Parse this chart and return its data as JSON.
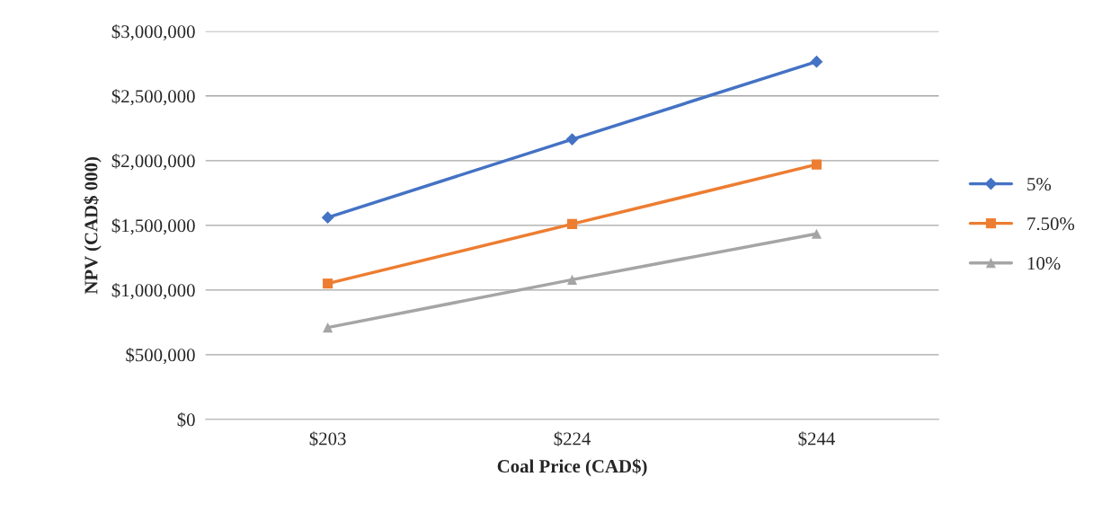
{
  "chart_data": {
    "type": "line",
    "xlabel": "Coal Price (CAD$)",
    "ylabel": "NPV (CAD$ 000)",
    "categories": [
      "$203",
      "$224",
      "$244"
    ],
    "series": [
      {
        "name": "5%",
        "color": "#4472c4",
        "marker": "diamond",
        "values": [
          1560000,
          2165000,
          2765000
        ]
      },
      {
        "name": "7.50%",
        "color": "#ed7d31",
        "marker": "square",
        "values": [
          1050000,
          1510000,
          1970000
        ]
      },
      {
        "name": "10%",
        "color": "#a5a5a5",
        "marker": "triangle",
        "values": [
          710000,
          1080000,
          1435000
        ]
      }
    ],
    "ylim": [
      0,
      3000000
    ],
    "yticks": [
      {
        "value": 0,
        "label": "$0"
      },
      {
        "value": 500000,
        "label": "$500,000"
      },
      {
        "value": 1000000,
        "label": "$1,000,000"
      },
      {
        "value": 1500000,
        "label": "$1,500,000"
      },
      {
        "value": 2000000,
        "label": "$2,000,000"
      },
      {
        "value": 2500000,
        "label": "$2,500,000"
      },
      {
        "value": 3000000,
        "label": "$3,000,000"
      }
    ],
    "grid": "y",
    "legend": "right",
    "line_style": "solid"
  }
}
